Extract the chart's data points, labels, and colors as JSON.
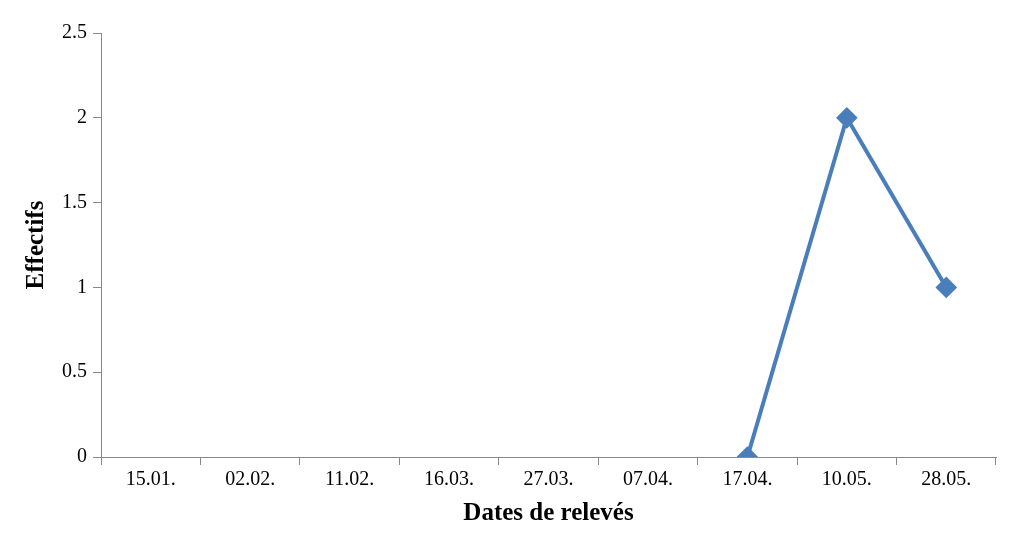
{
  "chart_data": {
    "type": "line",
    "xlabel": "Dates de relevés",
    "ylabel": "Effectifs",
    "categories": [
      "15.01.",
      "02.02.",
      "11.02.",
      "16.03.",
      "27.03.",
      "07.04.",
      "17.04.",
      "10.05.",
      "28.05."
    ],
    "series": [
      {
        "color": "#4a7ebb",
        "values": [
          null,
          null,
          null,
          null,
          null,
          null,
          0,
          2,
          1
        ]
      }
    ],
    "ylim": [
      0,
      2.5
    ],
    "yticks": [
      0,
      0.5,
      1,
      1.5,
      2,
      2.5
    ],
    "grid": false,
    "legend": false,
    "marker": "diamond",
    "line_style": "solid"
  }
}
